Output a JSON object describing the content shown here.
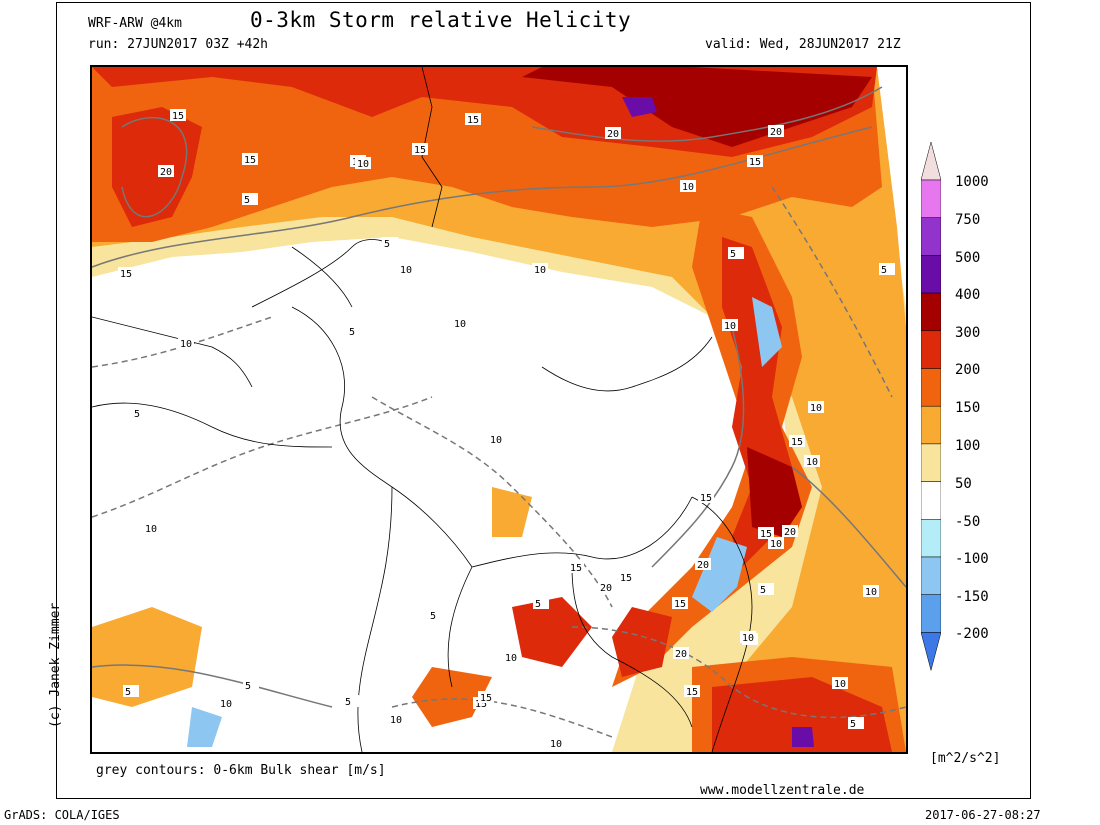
{
  "header": {
    "model": "WRF-ARW @4km",
    "title": "0-3km Storm relative Helicity",
    "run": "run: 27JUN2017 03Z +42h",
    "valid": "valid: Wed, 28JUN2017 21Z"
  },
  "footer": {
    "contour_note": "grey contours: 0-6km Bulk shear [m/s]",
    "website": "www.modellzentrale.de",
    "software": "GrADS: COLA/IGES",
    "timestamp": "2017-06-27-08:27",
    "copyright": "(c) Janek Zimmer"
  },
  "legend": {
    "unit": "[m^2/s^2]",
    "labels": [
      "1000",
      "750",
      "500",
      "400",
      "300",
      "200",
      "150",
      "100",
      "50",
      "-50",
      "-100",
      "-150",
      "-200"
    ],
    "colors": [
      "#f2dede",
      "#e777ee",
      "#9133cc",
      "#6a0ca8",
      "#a40000",
      "#dc2a0a",
      "#f06410",
      "#f8aa33",
      "#f8e49c",
      "#ffffff",
      "#b4ecf7",
      "#8ec6f2",
      "#5aa0ec",
      "#3c78e6"
    ]
  },
  "map": {
    "contour_labels": [
      "15",
      "20",
      "15",
      "10",
      "5",
      "15",
      "15",
      "10",
      "20",
      "20",
      "15",
      "10",
      "5",
      "15",
      "10",
      "5",
      "10",
      "10",
      "10",
      "5",
      "10",
      "5",
      "10",
      "15",
      "15",
      "10",
      "10",
      "15",
      "20",
      "15",
      "20",
      "15",
      "10",
      "15",
      "5",
      "10",
      "10",
      "5",
      "5",
      "10",
      "20",
      "15",
      "15",
      "20",
      "10",
      "10",
      "5",
      "15",
      "10",
      "5",
      "10",
      "5",
      "10",
      "5",
      "10",
      "5"
    ]
  }
}
